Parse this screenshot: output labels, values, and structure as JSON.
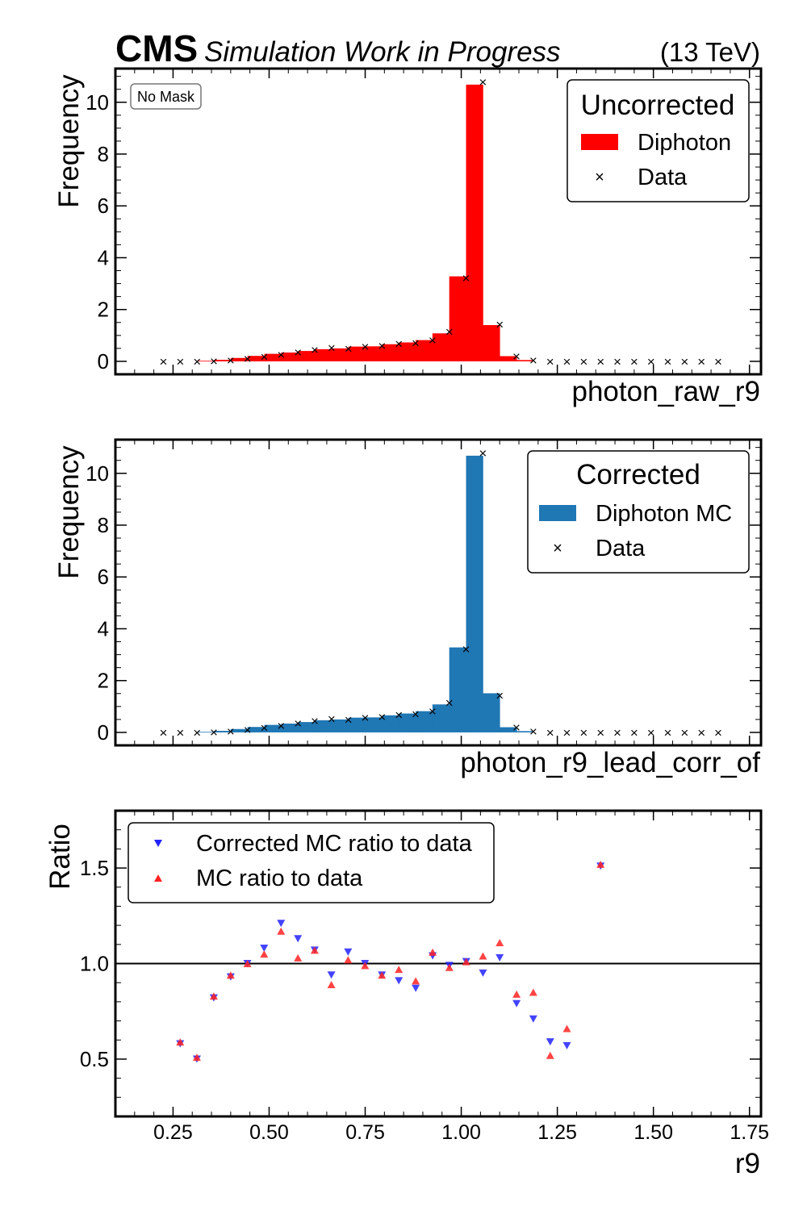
{
  "header": {
    "cms": "CMS",
    "subtitle": "Simulation Work in Progress",
    "energy": "(13 TeV)"
  },
  "colors": {
    "uncorrected_fill": "#ff0000",
    "corrected_fill": "#1f77b4",
    "corrected_ratio": "#2222ff",
    "uncorrected_ratio": "#ff2222",
    "data_marker": "#000000"
  },
  "chart_data": [
    {
      "type": "bar",
      "panel": "top",
      "badge": "No Mask",
      "xlabel": "photon_raw_r9",
      "ylabel": "Frequency",
      "ylim": [
        -0.5,
        11.3
      ],
      "yticks": [
        0,
        2,
        4,
        6,
        8,
        10
      ],
      "legend": {
        "title": "Uncorrected",
        "placement": "top-right",
        "entries": [
          "Diphoton",
          "Data"
        ]
      },
      "bin_edges": [
        0.3125,
        0.35625,
        0.4,
        0.44375,
        0.4875,
        0.53125,
        0.575,
        0.61875,
        0.6625,
        0.70625,
        0.75,
        0.79375,
        0.8375,
        0.88125,
        0.925,
        0.96875,
        1.0125,
        1.05625,
        1.1,
        1.14375,
        1.1875
      ],
      "series": [
        {
          "name": "Diphoton",
          "values": [
            0.02,
            0.06,
            0.13,
            0.21,
            0.29,
            0.34,
            0.4,
            0.47,
            0.5,
            0.57,
            0.58,
            0.66,
            0.73,
            0.82,
            1.08,
            3.28,
            10.68,
            1.4,
            0.2,
            0.05
          ]
        },
        {
          "name": "Data",
          "x": [
            0.225,
            0.26875,
            0.3125,
            0.35625,
            0.4,
            0.44375,
            0.4875,
            0.53125,
            0.575,
            0.61875,
            0.6625,
            0.70625,
            0.75,
            0.79375,
            0.8375,
            0.88125,
            0.925,
            0.96875,
            1.0125,
            1.05625,
            1.1,
            1.14375,
            1.1875,
            1.23125,
            1.275,
            1.31875,
            1.3625,
            1.40625,
            1.45,
            1.49375,
            1.5375,
            1.58125,
            1.625,
            1.66875
          ],
          "values": [
            0,
            0,
            0,
            0.02,
            0.05,
            0.11,
            0.18,
            0.27,
            0.36,
            0.45,
            0.52,
            0.5,
            0.57,
            0.6,
            0.68,
            0.72,
            0.82,
            1.15,
            3.22,
            10.78,
            1.43,
            0.2,
            0.05,
            0,
            0,
            0,
            0,
            0,
            0,
            0,
            0,
            0,
            0,
            0
          ]
        }
      ]
    },
    {
      "type": "bar",
      "panel": "middle",
      "xlabel": "photon_r9_lead_corr_of",
      "ylabel": "Frequency",
      "ylim": [
        -0.5,
        11.3
      ],
      "yticks": [
        0,
        2,
        4,
        6,
        8,
        10
      ],
      "legend": {
        "title": "Corrected",
        "placement": "top-right",
        "entries": [
          "Diphoton MC",
          "Data"
        ]
      },
      "bin_edges": [
        0.3125,
        0.35625,
        0.4,
        0.44375,
        0.4875,
        0.53125,
        0.575,
        0.61875,
        0.6625,
        0.70625,
        0.75,
        0.79375,
        0.8375,
        0.88125,
        0.925,
        0.96875,
        1.0125,
        1.05625,
        1.1,
        1.14375,
        1.1875
      ],
      "series": [
        {
          "name": "Diphoton MC",
          "values": [
            0.02,
            0.06,
            0.13,
            0.21,
            0.29,
            0.34,
            0.4,
            0.47,
            0.5,
            0.57,
            0.58,
            0.66,
            0.73,
            0.82,
            1.08,
            3.28,
            10.68,
            1.51,
            0.2,
            0.05
          ]
        },
        {
          "name": "Data",
          "x": [
            0.225,
            0.26875,
            0.3125,
            0.35625,
            0.4,
            0.44375,
            0.4875,
            0.53125,
            0.575,
            0.61875,
            0.6625,
            0.70625,
            0.75,
            0.79375,
            0.8375,
            0.88125,
            0.925,
            0.96875,
            1.0125,
            1.05625,
            1.1,
            1.14375,
            1.1875,
            1.23125,
            1.275,
            1.31875,
            1.3625,
            1.40625,
            1.45,
            1.49375,
            1.5375,
            1.58125,
            1.625,
            1.66875
          ],
          "values": [
            0,
            0,
            0,
            0.02,
            0.05,
            0.11,
            0.18,
            0.27,
            0.36,
            0.45,
            0.52,
            0.5,
            0.57,
            0.6,
            0.68,
            0.72,
            0.82,
            1.15,
            3.22,
            10.78,
            1.43,
            0.2,
            0.05,
            0,
            0,
            0,
            0,
            0,
            0,
            0,
            0,
            0,
            0,
            0
          ]
        }
      ]
    },
    {
      "type": "scatter",
      "panel": "bottom",
      "xlabel": "r9",
      "ylabel": "Ratio",
      "xlim": [
        0.1,
        1.78
      ],
      "ylim": [
        0.2,
        1.8
      ],
      "xticks": [
        0.25,
        0.5,
        0.75,
        1.0,
        1.25,
        1.5,
        1.75
      ],
      "xtick_labels": [
        "0.25",
        "0.50",
        "0.75",
        "1.00",
        "1.25",
        "1.50",
        "1.75"
      ],
      "yticks": [
        0.5,
        1.0,
        1.5
      ],
      "ytick_labels": [
        "0.5",
        "1.0",
        "1.5"
      ],
      "reference_line": 1.0,
      "legend": {
        "placement": "top-left",
        "entries": [
          "Corrected MC ratio to data",
          "MC ratio to data"
        ]
      },
      "series": [
        {
          "name": "Corrected MC ratio to data",
          "marker": "triangle-down",
          "x": [
            0.2685,
            0.312,
            0.356,
            0.4,
            0.4435,
            0.487,
            0.531,
            0.575,
            0.6185,
            0.662,
            0.7055,
            0.7495,
            0.7935,
            0.8375,
            0.8815,
            0.9255,
            0.969,
            1.013,
            1.0565,
            1.1,
            1.144,
            1.1875,
            1.2315,
            1.275,
            1.3625
          ],
          "values": [
            0.58,
            0.5,
            0.82,
            0.93,
            1.0,
            1.08,
            1.21,
            1.13,
            1.07,
            0.94,
            1.06,
            1.0,
            0.94,
            0.91,
            0.87,
            1.04,
            0.99,
            1.01,
            0.95,
            1.03,
            0.79,
            0.71,
            0.59,
            0.57,
            1.51
          ]
        },
        {
          "name": "MC ratio to data",
          "marker": "triangle-up",
          "x": [
            0.2685,
            0.312,
            0.356,
            0.4,
            0.4435,
            0.487,
            0.531,
            0.575,
            0.6185,
            0.662,
            0.7055,
            0.7495,
            0.7935,
            0.8375,
            0.8815,
            0.9255,
            0.969,
            1.013,
            1.0565,
            1.1,
            1.144,
            1.1875,
            1.2315,
            1.275,
            1.3625
          ],
          "values": [
            0.59,
            0.51,
            0.83,
            0.94,
            1.0,
            1.05,
            1.17,
            1.03,
            1.07,
            0.89,
            1.02,
            0.99,
            0.94,
            0.97,
            0.91,
            1.06,
            0.98,
            1.01,
            1.04,
            1.11,
            0.84,
            0.85,
            0.52,
            0.66,
            1.52
          ]
        }
      ]
    }
  ]
}
